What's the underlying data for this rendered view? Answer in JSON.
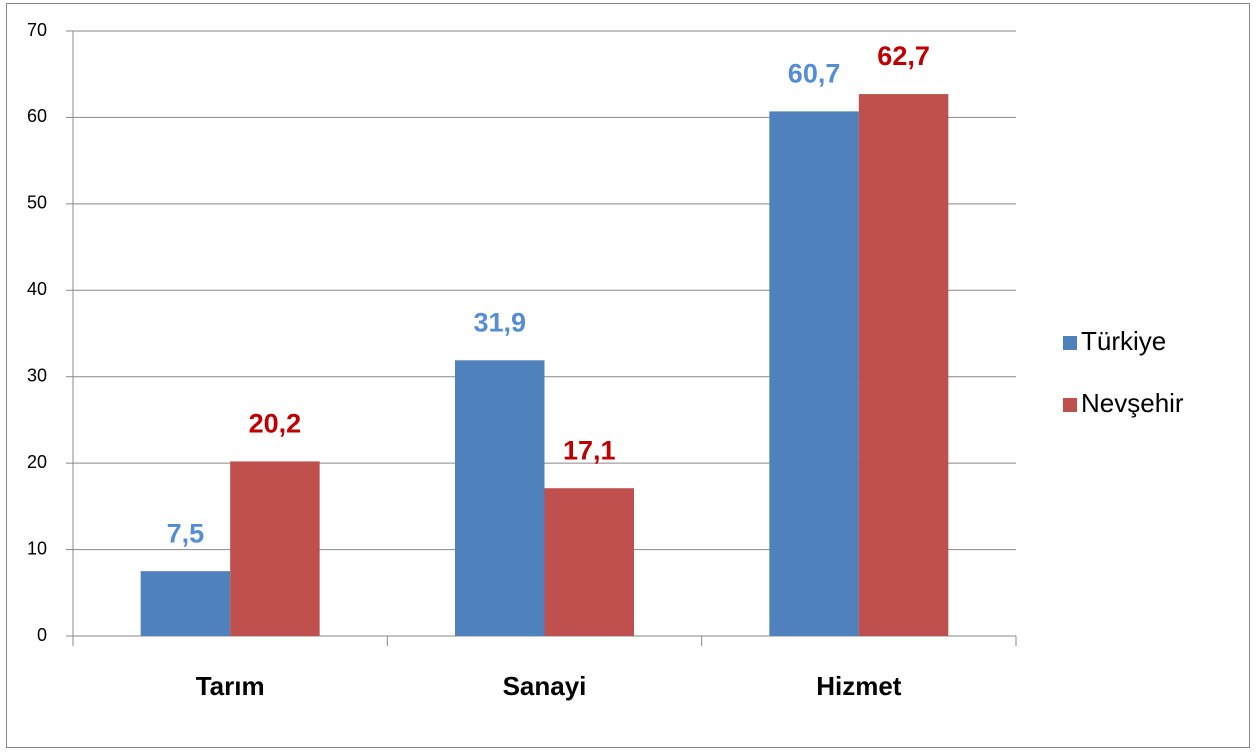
{
  "chart_data": {
    "type": "bar",
    "categories": [
      "Tarım",
      "Sanayi",
      "Hizmet"
    ],
    "series": [
      {
        "name": "Türkiye",
        "color": "#4f81bd",
        "label_color": "#558ed5",
        "values": [
          7.5,
          31.9,
          60.7
        ],
        "value_labels": [
          "7,5",
          "31,9",
          "60,7"
        ]
      },
      {
        "name": "Nevşehir",
        "color": "#c0504d",
        "label_color": "#c00000",
        "values": [
          20.2,
          17.1,
          62.7
        ],
        "value_labels": [
          "20,2",
          "17,1",
          "62,7"
        ]
      }
    ],
    "ylim": [
      0,
      70
    ],
    "yticks": [
      0,
      10,
      20,
      30,
      40,
      50,
      60,
      70
    ],
    "grid": true,
    "legend": "right"
  }
}
